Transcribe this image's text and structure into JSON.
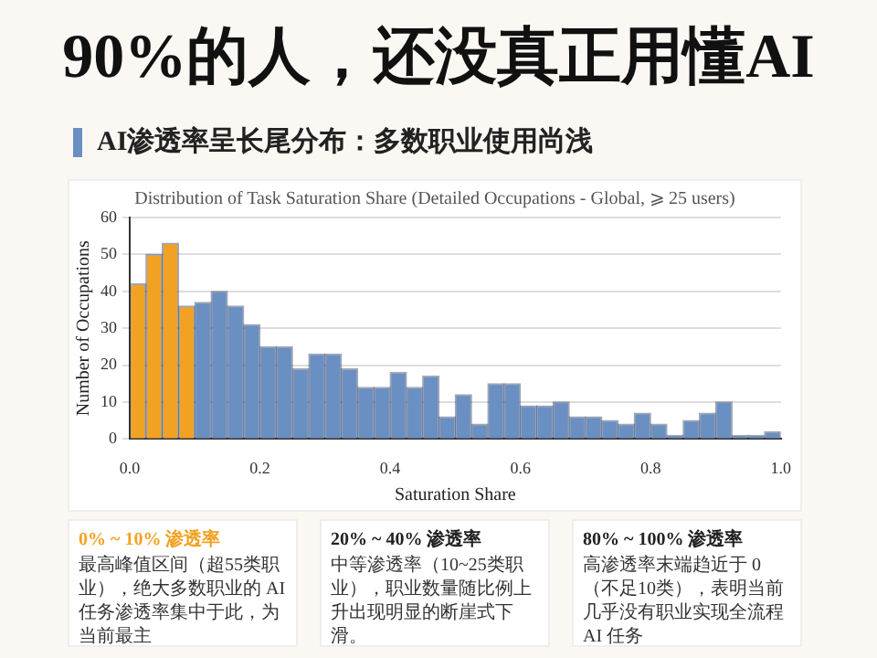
{
  "chart_data": {
    "type": "histogram",
    "title": "90%的人，还没真正用懂AI",
    "subtitle": "AI渗透率呈长尾分布：多数职业使用尚浅",
    "annotations": [
      "Distribution of Task Saturation Share (Detailed Occupations - Global, ⩾ 25 users)",
      "0% ~ 10% 渗透率",
      "最高峰值区间（超55类职业），绝大多数职业的 AI 任务渗透率集中于此，为当前最主",
      "20% ~ 40% 渗透率",
      "中等渗透率（10~25类职业），职业数量随比例上升出现明显的断崖式下滑。",
      "80% ~ 100% 渗透率",
      "高渗透率末端趋近于 0（不足10类），表明当前几乎没有职业实现全流程 AI 任务"
    ],
    "xlabel": "Saturation Share",
    "ylabel": "Number of Occupations",
    "bins": [
      0,
      0.025,
      0.05,
      0.075,
      0.1,
      0.125,
      0.15,
      0.175,
      0.2,
      0.225,
      0.25,
      0.275,
      0.3,
      0.325,
      0.35,
      0.375,
      0.4,
      0.425,
      0.45,
      0.475,
      0.5,
      0.525,
      0.55,
      0.575,
      0.6,
      0.625,
      0.65,
      0.675,
      0.7,
      0.725,
      0.75,
      0.775,
      0.8,
      0.825,
      0.85,
      0.875,
      0.9,
      0.925,
      0.95,
      0.975,
      1
    ],
    "values": [
      42,
      50,
      53,
      36,
      37,
      40,
      36,
      31,
      25,
      25,
      19,
      23,
      23,
      19,
      14,
      14,
      18,
      14,
      17,
      6,
      12,
      4,
      15,
      15,
      9,
      9,
      10,
      6,
      6,
      5,
      4,
      7,
      4,
      1,
      5,
      7,
      10,
      1,
      1,
      2
    ],
    "colors": [
      "#f2a223",
      "#f2a223",
      "#f2a223",
      "#f2a223",
      "#6a8fc2",
      "#6a8fc2",
      "#6a8fc2",
      "#6a8fc2",
      "#6a8fc2",
      "#6a8fc2",
      "#6a8fc2",
      "#6a8fc2",
      "#6a8fc2",
      "#6a8fc2",
      "#6a8fc2",
      "#6a8fc2",
      "#6a8fc2",
      "#6a8fc2",
      "#6a8fc2",
      "#6a8fc2",
      "#6a8fc2",
      "#6a8fc2",
      "#6a8fc2",
      "#6a8fc2",
      "#6a8fc2",
      "#6a8fc2",
      "#6a8fc2",
      "#6a8fc2",
      "#6a8fc2",
      "#6a8fc2",
      "#6a8fc2",
      "#6a8fc2",
      "#6a8fc2",
      "#6a8fc2",
      "#6a8fc2",
      "#6a8fc2",
      "#6a8fc2",
      "#6a8fc2",
      "#6a8fc2",
      "#6a8fc2"
    ],
    "xlim": [
      0,
      1
    ],
    "xticks": [
      {
        "value": 0,
        "label": "0.0"
      },
      0.2,
      0.4,
      0.6,
      0.8,
      {
        "value": 1,
        "label": "1.0"
      }
    ],
    "ylim": [
      0,
      60
    ],
    "yticks": [
      0,
      10,
      20,
      30,
      40,
      50,
      60
    ],
    "grid": "y"
  }
}
